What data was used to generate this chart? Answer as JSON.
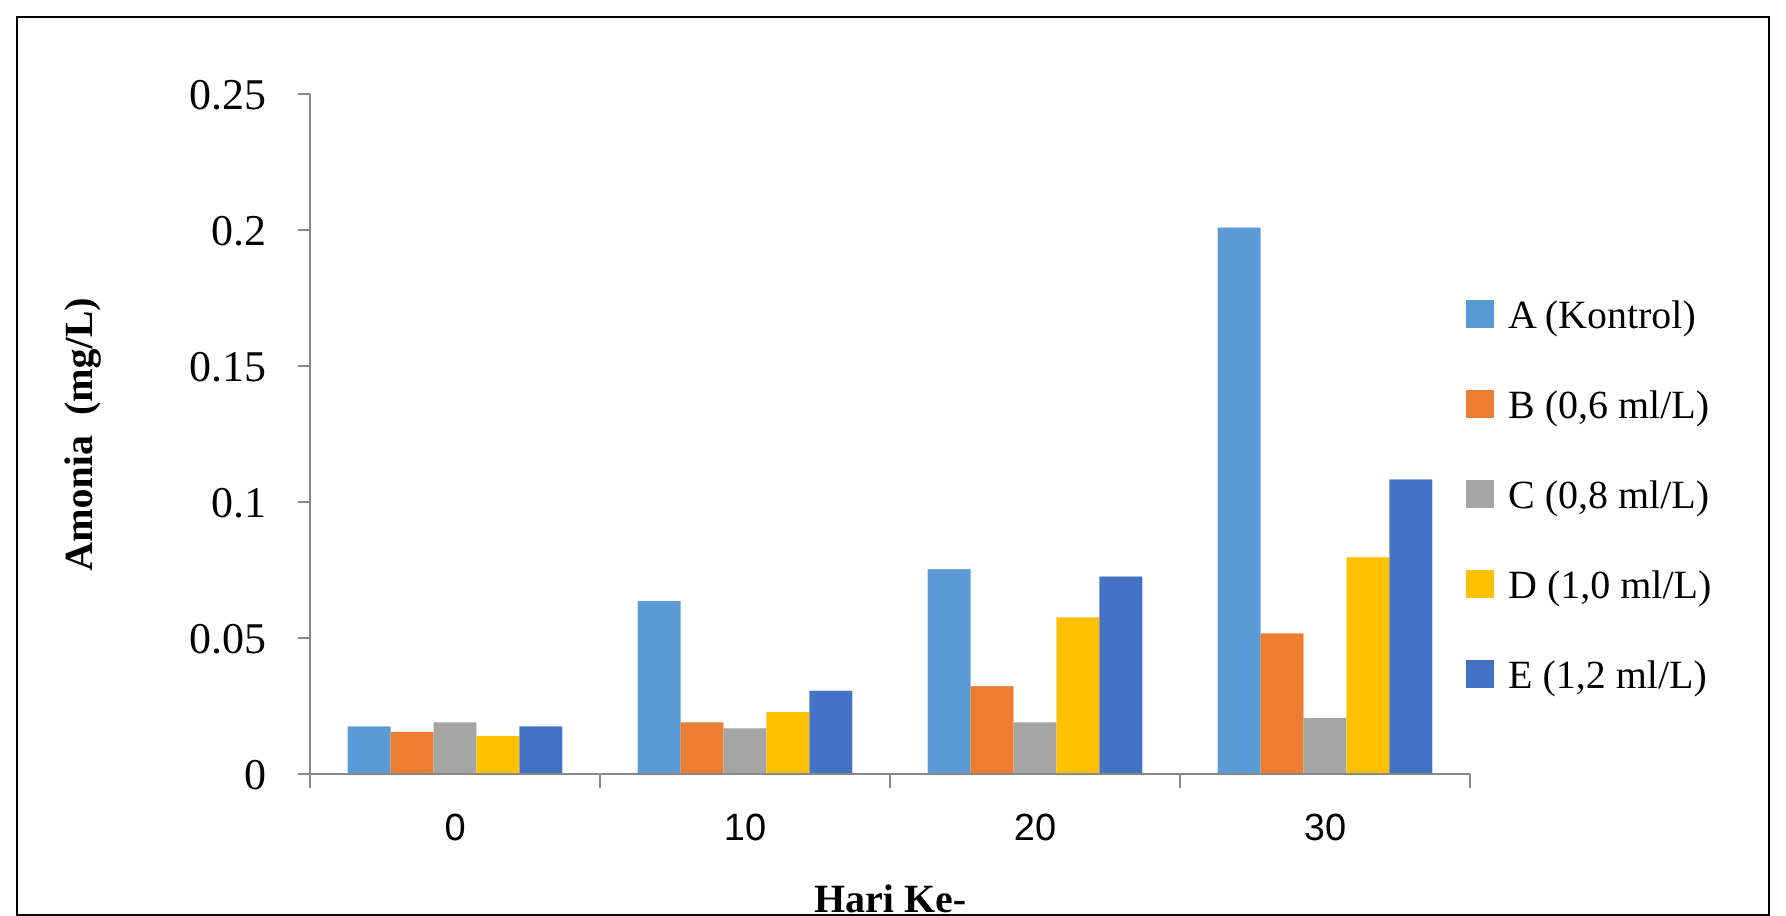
{
  "chart_data": {
    "type": "bar",
    "xlabel": "Hari Ke-",
    "ylabel": "Amonia  (mg/L)",
    "categories": [
      "0",
      "10",
      "20",
      "30"
    ],
    "series": [
      {
        "name": "A (Kontrol)",
        "color": "#5b9bd5",
        "values": [
          0.0175,
          0.0636,
          0.0753,
          0.2009
        ]
      },
      {
        "name": "B (0,6 ml/L)",
        "color": "#ed7d31",
        "values": [
          0.0155,
          0.019,
          0.0323,
          0.0517
        ]
      },
      {
        "name": "C (0,8 ml/L)",
        "color": "#a5a5a5",
        "values": [
          0.019,
          0.0168,
          0.019,
          0.0206
        ]
      },
      {
        "name": "D (1,0 ml/L)",
        "color": "#ffc000",
        "values": [
          0.014,
          0.0228,
          0.0576,
          0.0797
        ]
      },
      {
        "name": "E (1,2 ml/L)",
        "color": "#4472c4",
        "values": [
          0.0175,
          0.0306,
          0.0726,
          0.1083
        ]
      }
    ],
    "ylim": [
      0,
      0.25
    ],
    "yticks": [
      0,
      0.05,
      0.1,
      0.15,
      0.2,
      0.25
    ],
    "grid": false,
    "legend": "right"
  }
}
